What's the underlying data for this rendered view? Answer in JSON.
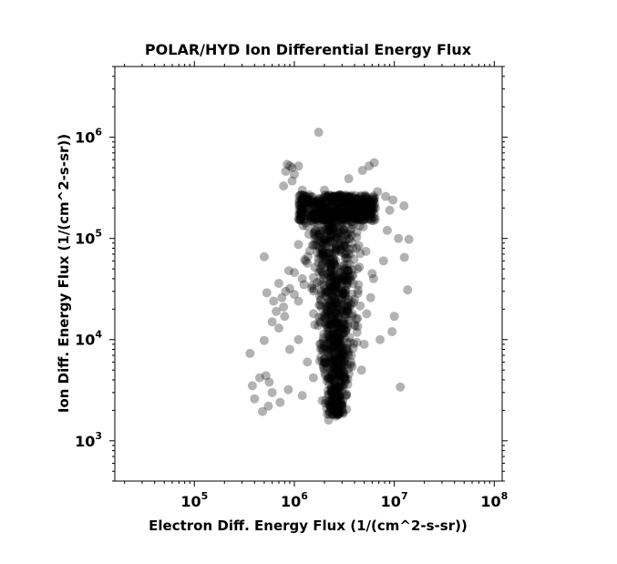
{
  "chart_data": {
    "type": "scatter",
    "title": "POLAR/HYD  Ion Differential Energy Flux",
    "xlabel": "Electron Diff. Energy Flux (1/(cm^2-s-sr))",
    "ylabel": "Ion Diff. Energy Flux (1/(cm^2-s-sr))",
    "x_scale": "log",
    "y_scale": "log",
    "xlim": [
      16000,
      120000000
    ],
    "ylim": [
      400,
      5000000
    ],
    "x_ticks": [
      {
        "value": 100000,
        "base": "10",
        "exp": "5"
      },
      {
        "value": 1000000,
        "base": "10",
        "exp": "6"
      },
      {
        "value": 10000000,
        "base": "10",
        "exp": "7"
      },
      {
        "value": 100000000,
        "base": "10",
        "exp": "8"
      }
    ],
    "y_ticks": [
      {
        "value": 1000,
        "base": "10",
        "exp": "3"
      },
      {
        "value": 10000,
        "base": "10",
        "exp": "4"
      },
      {
        "value": 100000,
        "base": "10",
        "exp": "5"
      },
      {
        "value": 1000000,
        "base": "10",
        "exp": "6"
      }
    ],
    "grid": false,
    "marker_color": "#000000",
    "marker_opacity": 0.3,
    "dense_core": {
      "x_center": 2600000,
      "x_spread_log10": 0.08,
      "y_range": [
        1800,
        200000
      ]
    },
    "dense_band": {
      "x_range": [
        1100000,
        6500000
      ],
      "y_range": [
        150000,
        270000
      ]
    },
    "points": [
      [
        1750000,
        1120000
      ],
      [
        850000,
        540000
      ],
      [
        900000,
        520000
      ],
      [
        950000,
        500000
      ],
      [
        820000,
        460000
      ],
      [
        1000000,
        430000
      ],
      [
        1100000,
        520000
      ],
      [
        780000,
        330000
      ],
      [
        950000,
        370000
      ],
      [
        1200000,
        300000
      ],
      [
        5600000,
        520000
      ],
      [
        6300000,
        560000
      ],
      [
        4800000,
        470000
      ],
      [
        3500000,
        390000
      ],
      [
        2000000,
        300000
      ],
      [
        6800000,
        290000
      ],
      [
        8200000,
        260000
      ],
      [
        9700000,
        240000
      ],
      [
        9000000,
        190000
      ],
      [
        12500000,
        210000
      ],
      [
        11000000,
        100000
      ],
      [
        14000000,
        98000
      ],
      [
        12600000,
        65000
      ],
      [
        13600000,
        31000
      ],
      [
        10000000,
        17000
      ],
      [
        9500000,
        12000
      ],
      [
        11500000,
        3400
      ],
      [
        7200000,
        10000
      ],
      [
        5800000,
        26000
      ],
      [
        6200000,
        40000
      ],
      [
        1100000,
        87000
      ],
      [
        500000,
        66000
      ],
      [
        530000,
        29000
      ],
      [
        700000,
        36000
      ],
      [
        620000,
        24000
      ],
      [
        660000,
        19000
      ],
      [
        750000,
        26000
      ],
      [
        820000,
        30000
      ],
      [
        900000,
        32000
      ],
      [
        1000000,
        28000
      ],
      [
        1100000,
        24000
      ],
      [
        880000,
        48000
      ],
      [
        1000000,
        46000
      ],
      [
        1200000,
        40000
      ],
      [
        600000,
        15000
      ],
      [
        700000,
        13000
      ],
      [
        800000,
        17000
      ],
      [
        500000,
        9800
      ],
      [
        1350000,
        6000
      ],
      [
        1550000,
        4200
      ],
      [
        1200000,
        2800
      ],
      [
        870000,
        3200
      ],
      [
        720000,
        2400
      ],
      [
        480000,
        1950
      ],
      [
        380000,
        3500
      ],
      [
        450000,
        4200
      ],
      [
        560000,
        3800
      ],
      [
        520000,
        4400
      ],
      [
        600000,
        3000
      ],
      [
        360000,
        7300
      ],
      [
        2200000,
        1600
      ],
      [
        4700000,
        5000
      ],
      [
        6000000,
        45000
      ],
      [
        4000000,
        14000
      ],
      [
        5000000,
        9000
      ],
      [
        1800000,
        9000
      ],
      [
        1600000,
        14000
      ],
      [
        2000000,
        6000
      ],
      [
        3200000,
        70000
      ],
      [
        4200000,
        80000
      ],
      [
        7800000,
        60000
      ],
      [
        8500000,
        120000
      ],
      [
        6200000,
        150000
      ],
      [
        1400000,
        110000
      ],
      [
        1300000,
        60000
      ],
      [
        900000,
        8000
      ],
      [
        1100000,
        10000
      ],
      [
        400000,
        2600
      ],
      [
        550000,
        2200
      ],
      [
        1900000,
        2500
      ],
      [
        2600000,
        1750
      ],
      [
        3000000,
        3500
      ],
      [
        5300000,
        18000
      ],
      [
        780000,
        21000
      ],
      [
        1250000,
        35000
      ]
    ]
  }
}
